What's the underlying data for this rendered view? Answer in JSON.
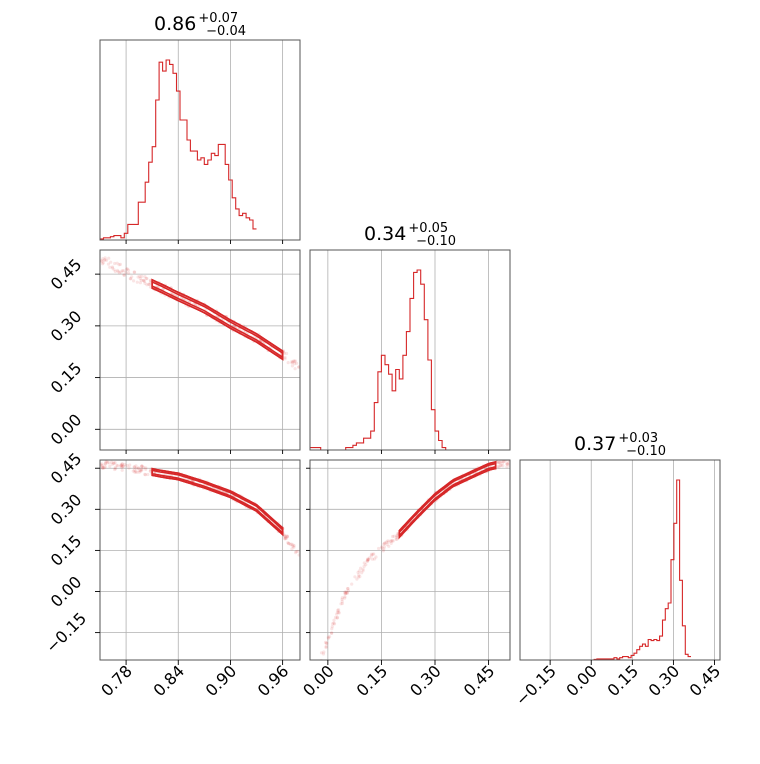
{
  "chart_data": {
    "type": "corner",
    "color": "#d62728",
    "parameters": [
      {
        "title": {
          "median": "0.86",
          "plus": "+0.07",
          "minus": "−0.04"
        },
        "range": [
          0.75,
          0.98
        ],
        "ticks": [
          0.78,
          0.84,
          0.9,
          0.96
        ],
        "tick_labels": [
          "0.78",
          "0.84",
          "0.90",
          "0.96"
        ]
      },
      {
        "title": {
          "median": "0.34",
          "plus": "+0.05",
          "minus": "−0.10"
        },
        "range": [
          -0.05,
          0.51
        ],
        "ticks": [
          0.0,
          0.15,
          0.3,
          0.45
        ],
        "tick_labels": [
          "0.00",
          "0.15",
          "0.30",
          "0.45"
        ],
        "row_ticks": [
          0.0,
          0.15,
          0.3,
          0.45
        ],
        "row_tick_labels": [
          "0.00",
          "0.15",
          "0.30",
          "0.45"
        ],
        "row_range": [
          -0.06,
          0.52
        ]
      },
      {
        "title": {
          "median": "0.37",
          "plus": "+0.03",
          "minus": "−0.10"
        },
        "range": [
          -0.26,
          0.47
        ],
        "ticks": [
          -0.15,
          0.0,
          0.15,
          0.3,
          0.45
        ],
        "tick_labels": [
          "−0.15",
          "0.00",
          "0.15",
          "0.30",
          "0.45"
        ],
        "row_ticks": [
          -0.15,
          0.0,
          0.15,
          0.3,
          0.45
        ],
        "row_tick_labels": [
          "−0.15",
          "0.00",
          "0.15",
          "0.30",
          "0.45"
        ],
        "row_range": [
          -0.25,
          0.48
        ]
      }
    ],
    "histograms": [
      {
        "param": 0,
        "bin_start": 0.75,
        "bin_width": 0.004,
        "counts": [
          0.5,
          1,
          1,
          1.5,
          2,
          2,
          1,
          3,
          7,
          7,
          7,
          17,
          17,
          26,
          35,
          42,
          63,
          80,
          76,
          81,
          79,
          75,
          67,
          54,
          54,
          45,
          40,
          40,
          36,
          37,
          34,
          36,
          39,
          38,
          43,
          43,
          34,
          27,
          19,
          14,
          11,
          12,
          10,
          9,
          5
        ]
      },
      {
        "param": 1,
        "bin_start": -0.05,
        "bin_width": 0.01,
        "counts": [
          1,
          1,
          1,
          0,
          0,
          0,
          0,
          0,
          0,
          0,
          1,
          1,
          2,
          3,
          3,
          5,
          5,
          8,
          20,
          33,
          40,
          36,
          32,
          25,
          34,
          30,
          40,
          50,
          64,
          75,
          76,
          70,
          55,
          38,
          17,
          8,
          4,
          1,
          0,
          0,
          0,
          0,
          0,
          0,
          0,
          0,
          0,
          0,
          0,
          0,
          0,
          0,
          0,
          0,
          0,
          0
        ]
      },
      {
        "param": 2,
        "bin_start": -0.26,
        "bin_width": 0.0104,
        "counts": [
          0,
          0,
          0,
          0,
          0,
          0,
          0,
          0,
          0,
          0,
          0,
          0,
          0,
          0,
          0,
          0,
          0,
          0,
          0,
          0,
          0,
          0,
          0,
          0,
          0,
          0,
          0.5,
          1,
          1,
          1,
          1,
          1,
          1,
          2,
          1,
          2,
          3,
          3,
          2,
          4,
          6,
          9,
          12,
          14,
          12,
          18,
          17,
          18,
          17,
          21,
          35,
          45,
          50,
          88,
          120,
          158,
          70,
          30,
          5,
          3
        ]
      }
    ],
    "pairs": [
      {
        "x": 0,
        "y": 1,
        "trend": [
          [
            0.75,
            0.495
          ],
          [
            0.78,
            0.455
          ],
          [
            0.82,
            0.41
          ],
          [
            0.84,
            0.385
          ],
          [
            0.87,
            0.35
          ],
          [
            0.9,
            0.305
          ],
          [
            0.93,
            0.265
          ],
          [
            0.96,
            0.215
          ],
          [
            0.98,
            0.18
          ]
        ]
      },
      {
        "x": 0,
        "y": 2,
        "trend": [
          [
            0.75,
            0.465
          ],
          [
            0.78,
            0.455
          ],
          [
            0.82,
            0.43
          ],
          [
            0.84,
            0.42
          ],
          [
            0.87,
            0.39
          ],
          [
            0.9,
            0.355
          ],
          [
            0.93,
            0.305
          ],
          [
            0.96,
            0.22
          ],
          [
            0.98,
            0.12
          ]
        ]
      },
      {
        "x": 1,
        "y": 2,
        "trend": [
          [
            -0.05,
            -0.35
          ],
          [
            0.05,
            0.0
          ],
          [
            0.12,
            0.12
          ],
          [
            0.2,
            0.21
          ],
          [
            0.25,
            0.28
          ],
          [
            0.3,
            0.345
          ],
          [
            0.35,
            0.395
          ],
          [
            0.4,
            0.425
          ],
          [
            0.45,
            0.455
          ],
          [
            0.5,
            0.47
          ]
        ]
      }
    ],
    "x_axes_labeled": [
      0,
      1,
      2
    ],
    "y_axes_labeled": [
      1,
      2
    ],
    "grid": true
  }
}
